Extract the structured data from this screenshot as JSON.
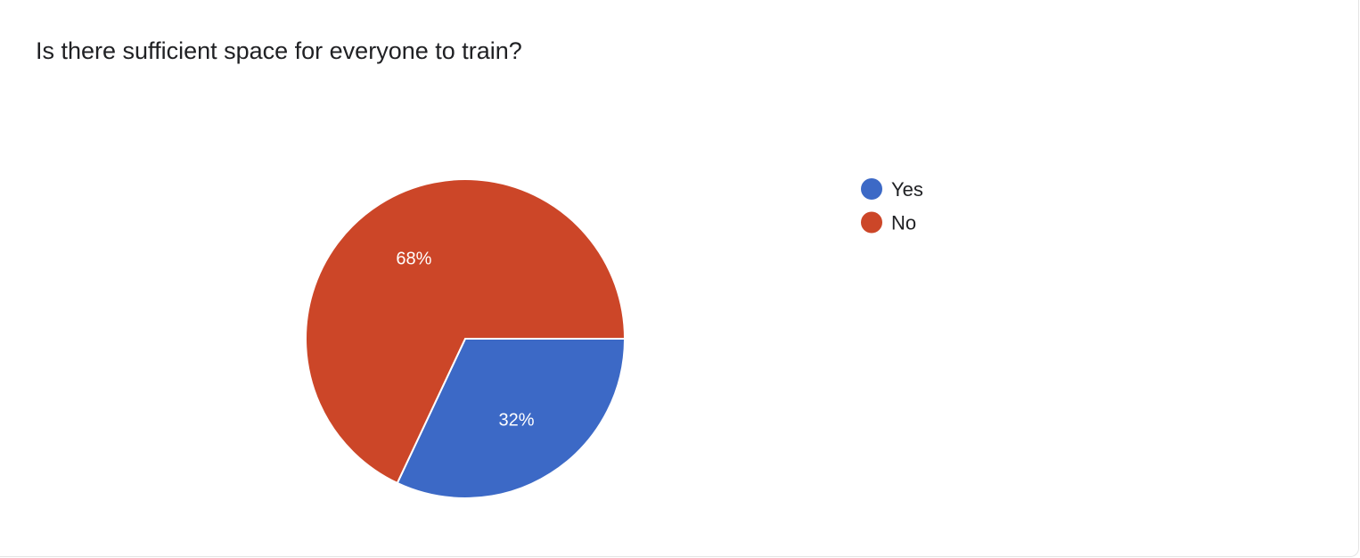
{
  "chart_data": {
    "type": "pie",
    "title": "Is there sufficient space for everyone to train?",
    "categories": [
      "Yes",
      "No"
    ],
    "values": [
      32,
      68
    ],
    "labels": [
      "32%",
      "68%"
    ],
    "colors": [
      "#3c69c6",
      "#cc4628"
    ],
    "legend": "right"
  }
}
